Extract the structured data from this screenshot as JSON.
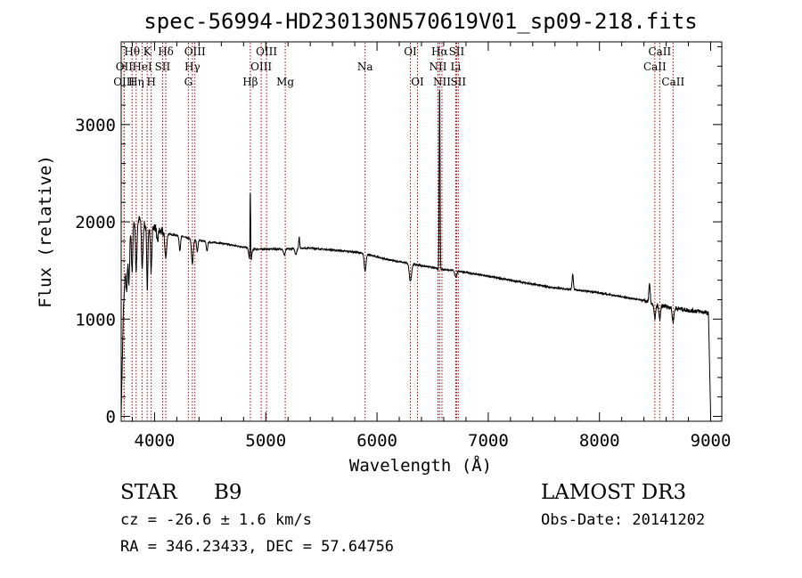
{
  "chart_data": {
    "type": "line",
    "title": "spec-56994-HD230130N570619V01_sp09-218.fits",
    "xlabel": "Wavelength (Å)",
    "ylabel": "Flux (relative)",
    "xlim": [
      3700,
      9100
    ],
    "ylim": [
      -50,
      3850
    ],
    "x_ticks": [
      4000,
      5000,
      6000,
      7000,
      8000,
      9000
    ],
    "y_ticks": [
      0,
      1000,
      2000,
      3000
    ],
    "grid": false,
    "spectrum_anchors": {
      "x": [
        3700,
        3720,
        3740,
        3760,
        3780,
        3800,
        3820,
        3840,
        3860,
        3880,
        3900,
        3920,
        3940,
        3960,
        3980,
        4000,
        4050,
        4100,
        4150,
        4200,
        4250,
        4300,
        4350,
        4400,
        4450,
        4500,
        4600,
        4700,
        4800,
        4850,
        4900,
        4950,
        5000,
        5100,
        5200,
        5300,
        5400,
        5500,
        5600,
        5700,
        5800,
        5900,
        6000,
        6100,
        6200,
        6300,
        6400,
        6500,
        6600,
        6700,
        6800,
        6900,
        7000,
        7200,
        7400,
        7600,
        7800,
        8000,
        8200,
        8400,
        8500,
        8600,
        8700,
        8800,
        8900,
        8980,
        9000
      ],
      "y": [
        0,
        1100,
        1550,
        1800,
        1900,
        1950,
        2000,
        1980,
        2020,
        2050,
        2000,
        1950,
        1900,
        1920,
        1950,
        1950,
        1900,
        1880,
        1870,
        1860,
        1850,
        1830,
        1820,
        1810,
        1800,
        1790,
        1780,
        1760,
        1740,
        1730,
        1720,
        1720,
        1720,
        1720,
        1720,
        1730,
        1730,
        1720,
        1710,
        1700,
        1690,
        1670,
        1640,
        1610,
        1590,
        1570,
        1550,
        1530,
        1510,
        1500,
        1480,
        1460,
        1440,
        1400,
        1360,
        1320,
        1300,
        1270,
        1230,
        1190,
        1150,
        1130,
        1110,
        1090,
        1080,
        1060,
        0
      ]
    },
    "absorption_features": {
      "center": [
        3750,
        3770,
        3798,
        3835,
        3889,
        3934,
        3970,
        4026,
        4101,
        4227,
        4340,
        4384,
        4471,
        4861,
        5167,
        5270,
        5893,
        6300,
        6563,
        6708,
        8498,
        8542,
        8662
      ],
      "depth": [
        400,
        500,
        450,
        500,
        500,
        600,
        450,
        150,
        250,
        150,
        250,
        120,
        100,
        180,
        60,
        60,
        180,
        180,
        60,
        60,
        140,
        140,
        140
      ],
      "width": [
        6,
        6,
        6,
        6,
        7,
        5,
        6,
        6,
        8,
        6,
        8,
        6,
        6,
        10,
        8,
        8,
        8,
        10,
        8,
        10,
        8,
        8,
        8
      ]
    },
    "emission_features": {
      "center": [
        4861,
        6563,
        5300,
        7760,
        8450
      ],
      "height": [
        780,
        1950,
        120,
        150,
        180
      ],
      "width": [
        3,
        4,
        4,
        6,
        6
      ]
    },
    "line_markers": [
      {
        "label": "Hθ",
        "x": 3798,
        "row": 1
      },
      {
        "label": "OII",
        "x": 3727,
        "row": 2
      },
      {
        "label": "OIII",
        "x": 3726,
        "row": 3
      },
      {
        "label": "K",
        "x": 3934,
        "row": 1
      },
      {
        "label": "HeI",
        "x": 3889,
        "row": 2
      },
      {
        "label": "Hη",
        "x": 3835,
        "row": 3
      },
      {
        "label": "Hδ",
        "x": 4101,
        "row": 1
      },
      {
        "label": "SII",
        "x": 4072,
        "row": 2
      },
      {
        "label": "H",
        "x": 3970,
        "row": 3
      },
      {
        "label": "OIII",
        "x": 4363,
        "row": 1
      },
      {
        "label": "Hγ",
        "x": 4340,
        "row": 2
      },
      {
        "label": "G",
        "x": 4304,
        "row": 3
      },
      {
        "label": "OIII",
        "x": 5007,
        "row": 1
      },
      {
        "label": "OIII",
        "x": 4959,
        "row": 2
      },
      {
        "label": "Hβ",
        "x": 4861,
        "row": 3
      },
      {
        "label": "Mg",
        "x": 5175,
        "row": 3
      },
      {
        "label": "Na",
        "x": 5893,
        "row": 2
      },
      {
        "label": "OI",
        "x": 6300,
        "row": 1
      },
      {
        "label": "OI",
        "x": 6364,
        "row": 3
      },
      {
        "label": "Hα",
        "x": 6563,
        "row": 1
      },
      {
        "label": "SII",
        "x": 6716,
        "row": 1
      },
      {
        "label": "NII",
        "x": 6548,
        "row": 2
      },
      {
        "label": "Li",
        "x": 6708,
        "row": 2
      },
      {
        "label": "NII",
        "x": 6584,
        "row": 3
      },
      {
        "label": "SII",
        "x": 6731,
        "row": 3
      },
      {
        "label": "CaII",
        "x": 8542,
        "row": 1
      },
      {
        "label": "CaII",
        "x": 8498,
        "row": 2
      },
      {
        "label": "CaII",
        "x": 8662,
        "row": 3
      }
    ],
    "marker_color": "#aa0000",
    "line_color": "#000000"
  },
  "info": {
    "object_class": "STAR",
    "subclass": "B9",
    "survey": "LAMOST DR3",
    "redshift_text": "cz = -26.6 ± 1.6 km/s",
    "obs_date_text": "Obs-Date: 20141202",
    "coords_text": "RA = 346.23433, DEC =  57.64756"
  }
}
